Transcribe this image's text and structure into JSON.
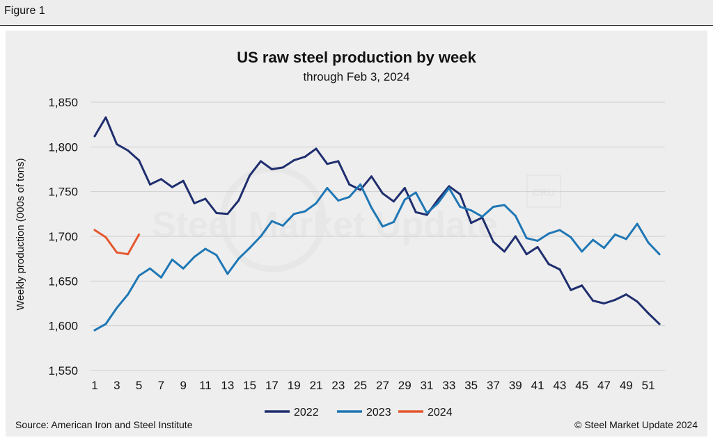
{
  "figure_label": "Figure 1",
  "source": "Source: American Iron and Steel Institute",
  "copyright": "© Steel Market Update 2024",
  "watermark": {
    "text": "Steel Market Update",
    "logo": "CRU"
  },
  "colors": {
    "2022": "#1f2e6e",
    "2023": "#1f77b4",
    "2024": "#e4572e",
    "grid": "#cfcfcf",
    "background": "#eeeeee"
  },
  "chart_data": {
    "type": "line",
    "title": "US raw steel production by week",
    "subtitle": "through Feb 3, 2024",
    "ylabel": "Weekly production (000s of tons)",
    "xlabel": "",
    "ylim": [
      1550,
      1850
    ],
    "yticks": [
      1550,
      1600,
      1650,
      1700,
      1750,
      1800,
      1850
    ],
    "ytick_labels": [
      "1,550",
      "1,600",
      "1,650",
      "1,700",
      "1,750",
      "1,800",
      "1,850"
    ],
    "xlim": [
      1,
      52
    ],
    "xticks": [
      1,
      3,
      5,
      7,
      9,
      11,
      13,
      15,
      17,
      19,
      21,
      23,
      25,
      27,
      29,
      31,
      33,
      35,
      37,
      39,
      41,
      43,
      45,
      47,
      49,
      51
    ],
    "grid": true,
    "legend_position": "bottom-center",
    "series": [
      {
        "name": "2022",
        "color": "#1f2e6e",
        "x": [
          1,
          2,
          3,
          4,
          5,
          6,
          7,
          8,
          9,
          10,
          11,
          12,
          13,
          14,
          15,
          16,
          17,
          18,
          19,
          20,
          21,
          22,
          23,
          24,
          25,
          26,
          27,
          28,
          29,
          30,
          31,
          32,
          33,
          34,
          35,
          36,
          37,
          38,
          39,
          40,
          41,
          42,
          43,
          44,
          45,
          46,
          47,
          48,
          49,
          50,
          51,
          52
        ],
        "values": [
          1812,
          1833,
          1803,
          1796,
          1785,
          1758,
          1764,
          1755,
          1762,
          1737,
          1742,
          1726,
          1725,
          1740,
          1768,
          1784,
          1775,
          1777,
          1785,
          1789,
          1798,
          1781,
          1784,
          1758,
          1752,
          1767,
          1748,
          1739,
          1754,
          1727,
          1724,
          1741,
          1756,
          1747,
          1715,
          1721,
          1694,
          1683,
          1700,
          1680,
          1688,
          1669,
          1663,
          1640,
          1645,
          1628,
          1625,
          1629,
          1635,
          1627,
          1614,
          1602
        ]
      },
      {
        "name": "2023",
        "color": "#1f77b4",
        "x": [
          1,
          2,
          3,
          4,
          5,
          6,
          7,
          8,
          9,
          10,
          11,
          12,
          13,
          14,
          15,
          16,
          17,
          18,
          19,
          20,
          21,
          22,
          23,
          24,
          25,
          26,
          27,
          28,
          29,
          30,
          31,
          32,
          33,
          34,
          35,
          36,
          37,
          38,
          39,
          40,
          41,
          42,
          43,
          44,
          45,
          46,
          47,
          48,
          49,
          50,
          51,
          52
        ],
        "values": [
          1595,
          1602,
          1620,
          1635,
          1656,
          1664,
          1654,
          1674,
          1664,
          1677,
          1686,
          1679,
          1658,
          1675,
          1687,
          1700,
          1717,
          1712,
          1725,
          1728,
          1737,
          1754,
          1740,
          1744,
          1758,
          1732,
          1711,
          1716,
          1741,
          1749,
          1726,
          1737,
          1754,
          1733,
          1729,
          1722,
          1733,
          1735,
          1723,
          1698,
          1695,
          1703,
          1707,
          1699,
          1683,
          1696,
          1687,
          1702,
          1697,
          1714,
          1693,
          1680
        ]
      },
      {
        "name": "2024",
        "color": "#e4572e",
        "x": [
          1,
          2,
          3,
          4,
          5
        ],
        "values": [
          1707,
          1699,
          1682,
          1680,
          1702
        ]
      }
    ]
  }
}
